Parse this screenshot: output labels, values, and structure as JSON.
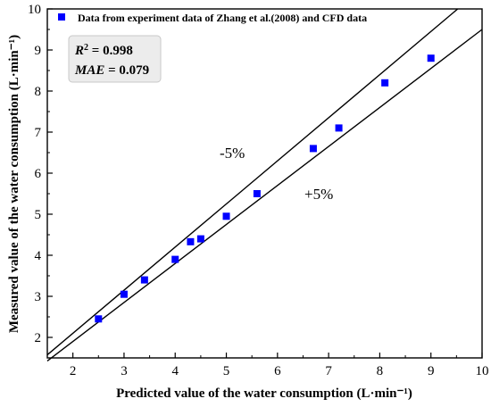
{
  "chart_data": {
    "type": "scatter",
    "xlabel": "Predicted value of the water consumption (L·min⁻¹)",
    "ylabel": "Measured value of the water consumption (L·min⁻¹)",
    "xlim": [
      1.5,
      10
    ],
    "ylim": [
      1.5,
      10
    ],
    "x_ticks": [
      2,
      3,
      4,
      5,
      6,
      7,
      8,
      9,
      10
    ],
    "y_ticks": [
      2,
      3,
      4,
      5,
      6,
      7,
      8,
      9,
      10
    ],
    "grid": false,
    "legend_position": "top-left",
    "series": [
      {
        "name": "Data from experiment data of Zhang et al.(2008) and CFD data",
        "color": "#0000ff",
        "marker": "square",
        "points": [
          {
            "x": 2.5,
            "y": 2.45
          },
          {
            "x": 3.0,
            "y": 3.05
          },
          {
            "x": 3.4,
            "y": 3.4
          },
          {
            "x": 4.0,
            "y": 3.9
          },
          {
            "x": 4.3,
            "y": 4.33
          },
          {
            "x": 4.5,
            "y": 4.4
          },
          {
            "x": 5.0,
            "y": 4.95
          },
          {
            "x": 5.6,
            "y": 5.5
          },
          {
            "x": 6.7,
            "y": 6.6
          },
          {
            "x": 7.2,
            "y": 7.1
          },
          {
            "x": 8.1,
            "y": 8.2
          },
          {
            "x": 9.0,
            "y": 8.8
          }
        ]
      }
    ],
    "reference_lines": [
      {
        "label": "-5%",
        "slope": 1.05
      },
      {
        "label": "+5%",
        "slope": 0.95
      }
    ],
    "stats": {
      "r2_label": "R",
      "r2_sup": "2",
      "r2_value": " = 0.998",
      "mae_label": "MAE",
      "mae_value": " = 0.079"
    }
  }
}
